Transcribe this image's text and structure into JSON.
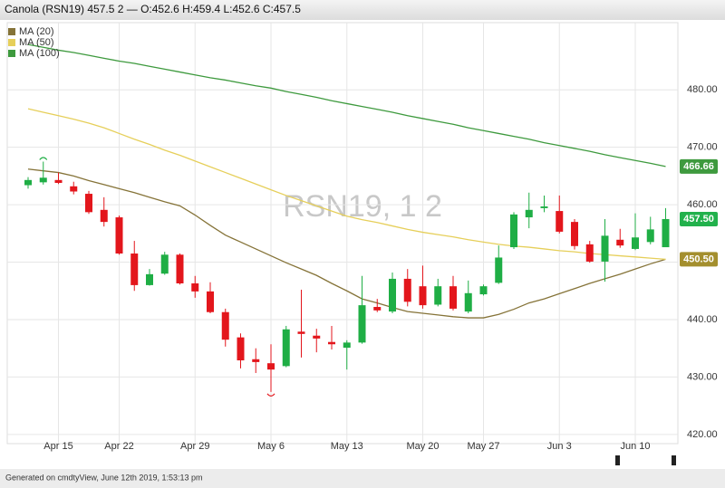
{
  "chart_data": {
    "type": "candlestick",
    "title": "Canola (RSN19) 457.5 2 — O:452.6 H:459.4 L:452.6 C:457.5",
    "watermark": "RSN19, 1 2",
    "footer": "Generated on cmdtyView, June 12th 2019, 1:53:13 pm",
    "categories": [
      null,
      null,
      "Apr 15",
      null,
      null,
      null,
      "Apr 22",
      null,
      null,
      null,
      null,
      "Apr 29",
      null,
      null,
      null,
      null,
      "May 6",
      null,
      null,
      null,
      null,
      "May 13",
      null,
      null,
      null,
      null,
      "May 20",
      null,
      null,
      null,
      "May 27",
      null,
      null,
      null,
      null,
      "Jun 3",
      null,
      null,
      null,
      null,
      "Jun 10",
      null,
      null
    ],
    "open": [
      463.4,
      463.9,
      464.3,
      463.2,
      461.9,
      459.1,
      457.8,
      451.5,
      446.0,
      448.0,
      451.3,
      446.3,
      444.9,
      441.3,
      436.9,
      433.1,
      432.4,
      431.9,
      437.9,
      437.2,
      436.1,
      435.1,
      436.0,
      442.2,
      441.4,
      447.1,
      445.8,
      442.6,
      445.8,
      441.4,
      444.4,
      446.4,
      452.6,
      457.8,
      459.4,
      458.9,
      457.0,
      453.1,
      450.1,
      453.9,
      452.3,
      453.5,
      452.6
    ],
    "high": [
      464.8,
      467.5,
      465.6,
      464.0,
      462.4,
      461.3,
      458.1,
      453.7,
      448.8,
      451.8,
      451.5,
      447.6,
      446.5,
      441.9,
      437.6,
      435.0,
      435.7,
      438.9,
      445.2,
      438.4,
      438.9,
      436.4,
      447.6,
      443.6,
      448.2,
      448.8,
      449.4,
      447.1,
      447.6,
      446.8,
      446.1,
      452.9,
      458.7,
      462.1,
      461.6,
      461.6,
      457.5,
      453.7,
      457.5,
      455.8,
      458.5,
      457.9,
      459.4
    ],
    "low": [
      462.8,
      463.5,
      463.6,
      461.8,
      458.4,
      456.2,
      451.3,
      445.0,
      445.9,
      447.8,
      446.1,
      443.8,
      441.1,
      435.3,
      431.5,
      430.7,
      427.4,
      431.7,
      433.4,
      434.3,
      434.8,
      431.3,
      435.8,
      441.3,
      441.1,
      442.3,
      441.9,
      442.3,
      441.6,
      441.1,
      444.2,
      446.2,
      452.3,
      455.9,
      458.7,
      455.0,
      452.2,
      449.9,
      446.6,
      452.5,
      452.1,
      453.1,
      452.6
    ],
    "close": [
      464.3,
      464.7,
      463.8,
      462.3,
      458.7,
      457.0,
      451.5,
      446.0,
      447.9,
      451.3,
      446.3,
      444.9,
      441.3,
      436.5,
      432.9,
      432.6,
      431.3,
      438.3,
      437.5,
      436.7,
      435.7,
      436.0,
      442.5,
      441.6,
      447.1,
      443.1,
      442.5,
      445.8,
      441.9,
      444.6,
      445.8,
      450.8,
      458.3,
      459.1,
      459.7,
      455.3,
      452.8,
      450.1,
      454.6,
      452.9,
      454.3,
      455.7,
      457.5
    ],
    "up_color": "#1fae45",
    "down_color": "#e3161c",
    "series": [
      {
        "name": "MA (20)",
        "color": "#857338",
        "values": [
          466.2,
          465.9,
          465.6,
          465.0,
          464.2,
          463.5,
          462.8,
          462.1,
          461.3,
          460.5,
          459.8,
          458.2,
          456.4,
          454.7,
          453.5,
          452.3,
          451.1,
          449.9,
          448.8,
          447.7,
          446.3,
          445.0,
          443.6,
          442.9,
          442.1,
          441.4,
          441.1,
          440.8,
          440.5,
          440.3,
          440.3,
          440.9,
          441.8,
          442.9,
          443.6,
          444.5,
          445.4,
          446.3,
          447.1,
          447.9,
          448.8,
          449.7,
          450.5
        ]
      },
      {
        "name": "MA (50)",
        "color": "#e6cf5a",
        "values": [
          476.7,
          476.1,
          475.5,
          474.9,
          474.2,
          473.4,
          472.4,
          471.4,
          470.5,
          469.5,
          468.6,
          467.6,
          466.6,
          465.6,
          464.6,
          463.6,
          462.6,
          461.6,
          460.7,
          459.8,
          458.9,
          458.0,
          457.4,
          456.9,
          456.3,
          455.7,
          455.2,
          454.8,
          454.4,
          453.9,
          453.5,
          453.1,
          452.8,
          452.6,
          452.3,
          452.0,
          451.8,
          451.5,
          451.3,
          451.1,
          450.9,
          450.7,
          450.5
        ]
      },
      {
        "name": "MA (100)",
        "color": "#3e9a3e",
        "values": [
          487.9,
          487.4,
          486.9,
          486.5,
          486.0,
          485.5,
          485.0,
          484.6,
          484.1,
          483.6,
          483.1,
          482.6,
          482.1,
          481.7,
          481.2,
          480.7,
          480.3,
          479.7,
          479.2,
          478.7,
          478.1,
          477.6,
          477.1,
          476.6,
          476.1,
          475.5,
          475.0,
          474.5,
          474.0,
          473.4,
          472.9,
          472.4,
          471.9,
          471.4,
          470.8,
          470.3,
          469.8,
          469.3,
          468.7,
          468.2,
          467.7,
          467.2,
          466.66
        ]
      }
    ],
    "price_labels": [
      {
        "value": 466.66,
        "label": "466.66",
        "color": "#3e9a3e"
      },
      {
        "value": 457.5,
        "label": "457.50",
        "color": "#22b14c"
      },
      {
        "value": 450.5,
        "label": "450.50",
        "color": "#a48f2e"
      }
    ],
    "ylim": [
      418.4,
      491.7
    ],
    "yticks": [
      {
        "value": 420,
        "label": "420.00"
      },
      {
        "value": 430,
        "label": "430.00"
      },
      {
        "value": 440,
        "label": "440.00"
      },
      {
        "value": 450,
        "label": "450.00"
      },
      {
        "value": 460,
        "label": "460.00"
      },
      {
        "value": 470,
        "label": "470.00"
      },
      {
        "value": 480,
        "label": "480.00"
      }
    ],
    "grid": true,
    "legend": "top-left"
  }
}
